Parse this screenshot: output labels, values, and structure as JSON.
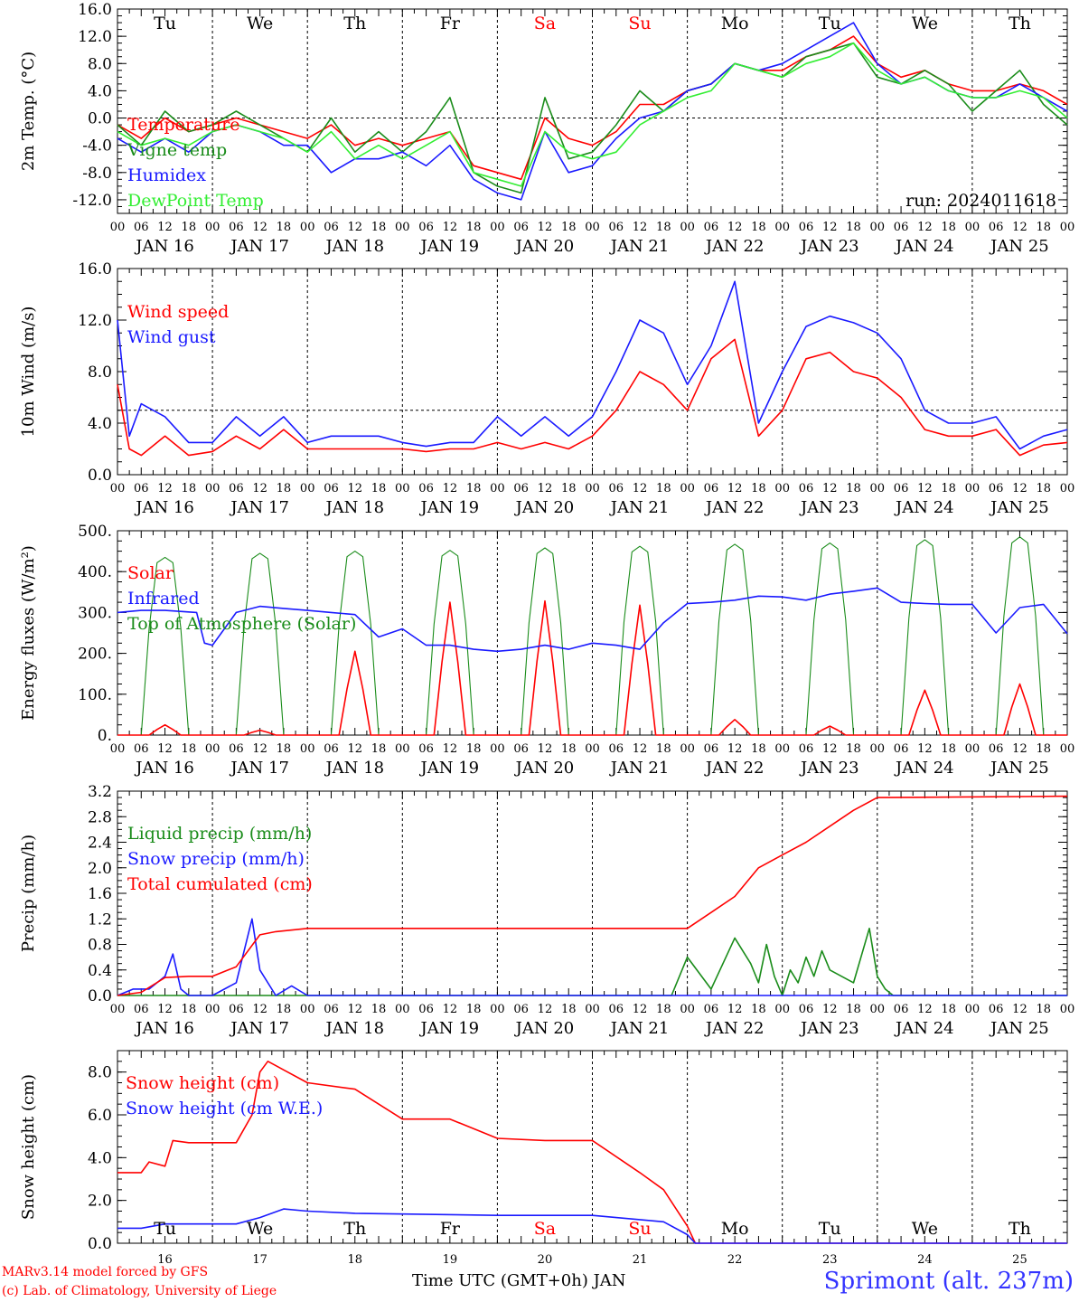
{
  "footer": {
    "model": "MARv3.14 model forced by GFS",
    "lab": "(c) Lab. of Climatology, University of Liege",
    "time_label": "Time UTC (GMT+0h) JAN",
    "station": "Sprimont (alt. 237m)"
  },
  "colors": {
    "red": "#ff0000",
    "green": "#1a8c1a",
    "blue": "#1a1aff",
    "lightgreen": "#33ee33",
    "black": "#000000"
  },
  "chart_data": [
    {
      "type": "line",
      "ylabel": "2m Temp. (°C)",
      "ylim": [
        -14,
        16
      ],
      "yticks": [
        "16.0",
        "12.0",
        "8.0",
        "4.0",
        "0.0",
        "-4.0",
        "-8.0",
        "-12.0"
      ],
      "ytick_values": [
        16,
        12,
        8,
        4,
        0,
        -4,
        -8,
        -12
      ],
      "ref_line": 0,
      "day_names": [
        "Tu",
        "We",
        "Th",
        "Fr",
        "Sa",
        "Su",
        "Mo",
        "Tu",
        "We",
        "Th"
      ],
      "weekend_days": [
        4,
        5
      ],
      "date_labels": [
        "JAN 16",
        "JAN 17",
        "JAN 18",
        "JAN 19",
        "JAN 20",
        "JAN 21",
        "JAN 22",
        "JAN 23",
        "JAN 24",
        "JAN 25"
      ],
      "hour_ticks": [
        "00",
        "06",
        "12",
        "18"
      ],
      "run": "run: 2024011618",
      "x": [
        0,
        6,
        12,
        18,
        24,
        30,
        36,
        42,
        48,
        54,
        60,
        66,
        72,
        78,
        84,
        90,
        96,
        102,
        108,
        114,
        120,
        126,
        132,
        138,
        144,
        150,
        156,
        162,
        168,
        174,
        180,
        186,
        192,
        198,
        204,
        210,
        216,
        222,
        228,
        234,
        240
      ],
      "series": [
        {
          "name": "Temperature",
          "color": "red",
          "values": [
            -1,
            -3,
            0,
            -2,
            -1,
            0,
            -1,
            -2,
            -3,
            -1,
            -4,
            -3,
            -4,
            -3,
            -2,
            -7,
            -8,
            -9,
            0,
            -3,
            -4,
            -2,
            2,
            2,
            4,
            5,
            8,
            7,
            7,
            9,
            10,
            12,
            8,
            6,
            7,
            5,
            4,
            4,
            5,
            4,
            2
          ]
        },
        {
          "name": "Vigne temp",
          "color": "green",
          "values": [
            -1,
            -4,
            1,
            -2,
            -1,
            1,
            -1,
            -3,
            -5,
            0,
            -5,
            -2,
            -5,
            -2,
            3,
            -8,
            -10,
            -11,
            3,
            -6,
            -5,
            -1,
            4,
            1,
            4,
            5,
            8,
            7,
            6,
            9,
            10,
            11,
            6,
            5,
            7,
            5,
            1,
            4,
            7,
            2,
            -1
          ]
        },
        {
          "name": "Humidex",
          "color": "blue",
          "values": [
            -3,
            -5,
            -3,
            -5,
            -2,
            -1,
            -2,
            -4,
            -4,
            -8,
            -6,
            -6,
            -5,
            -7,
            -4,
            -9,
            -11,
            -12,
            -2,
            -8,
            -7,
            -3,
            0,
            1,
            4,
            5,
            8,
            7,
            8,
            10,
            12,
            14,
            8,
            5,
            6,
            4,
            3,
            3,
            5,
            3,
            1
          ]
        },
        {
          "name": "DewPoint Temp",
          "color": "lightgreen",
          "values": [
            -2,
            -4,
            -3,
            -4,
            -2,
            -1,
            -2,
            -3,
            -5,
            -2,
            -6,
            -4,
            -6,
            -4,
            -2,
            -8,
            -9,
            -10,
            -2,
            -5,
            -6,
            -5,
            -1,
            1,
            3,
            4,
            8,
            7,
            6,
            8,
            9,
            11,
            7,
            5,
            6,
            4,
            3,
            3,
            4,
            3,
            0
          ]
        }
      ]
    },
    {
      "type": "line",
      "ylabel": "10m Wind (m/s)",
      "ylim": [
        0,
        16
      ],
      "yticks": [
        "16.0",
        "12.0",
        "8.0",
        "4.0",
        "0.0"
      ],
      "ytick_values": [
        16,
        12,
        8,
        4,
        0
      ],
      "ref_line": 5,
      "date_labels": [
        "JAN 16",
        "JAN 17",
        "JAN 18",
        "JAN 19",
        "JAN 20",
        "JAN 21",
        "JAN 22",
        "JAN 23",
        "JAN 24",
        "JAN 25"
      ],
      "hour_ticks": [
        "00",
        "06",
        "12",
        "18"
      ],
      "x": [
        0,
        3,
        6,
        12,
        18,
        24,
        30,
        36,
        42,
        48,
        54,
        60,
        66,
        72,
        78,
        84,
        90,
        96,
        102,
        108,
        114,
        120,
        126,
        132,
        138,
        144,
        150,
        156,
        162,
        168,
        174,
        180,
        186,
        192,
        198,
        204,
        210,
        216,
        222,
        228,
        234,
        240
      ],
      "series": [
        {
          "name": "Wind speed",
          "color": "red",
          "values": [
            7,
            2,
            1.5,
            3,
            1.5,
            1.8,
            3,
            2,
            3.5,
            2,
            2,
            2,
            2,
            2,
            1.8,
            2,
            2,
            2.5,
            2,
            2.5,
            2,
            3,
            5,
            8,
            7,
            5,
            9,
            10.5,
            3,
            5,
            9,
            9.5,
            8,
            7.5,
            6,
            3.5,
            3,
            3,
            3.5,
            1.5,
            2.3,
            2.5
          ]
        },
        {
          "name": "Wind gust",
          "color": "blue",
          "values": [
            12,
            3,
            5.5,
            4.5,
            2.5,
            2.5,
            4.5,
            3,
            4.5,
            2.5,
            3,
            3,
            3,
            2.5,
            2.2,
            2.5,
            2.5,
            4.5,
            3,
            4.5,
            3,
            4.5,
            8,
            12,
            11,
            7,
            10,
            15,
            4,
            8,
            11.5,
            12.3,
            11.8,
            11,
            9,
            5,
            4,
            4,
            4.5,
            2,
            3,
            3.5
          ]
        }
      ]
    },
    {
      "type": "line",
      "ylabel": "Energy fluxes (W/m²)",
      "ylim": [
        0,
        500
      ],
      "yticks": [
        "500.",
        "400.",
        "300.",
        "200.",
        "100.",
        "0."
      ],
      "ytick_values": [
        500,
        400,
        300,
        200,
        100,
        0
      ],
      "date_labels": [
        "JAN 16",
        "JAN 17",
        "JAN 18",
        "JAN 19",
        "JAN 20",
        "JAN 21",
        "JAN 22",
        "JAN 23",
        "JAN 24",
        "JAN 25"
      ],
      "hour_ticks": [
        "00",
        "06",
        "12",
        "18"
      ],
      "toa_peaks": [
        435,
        445,
        450,
        452,
        458,
        462,
        467,
        470,
        478,
        485
      ],
      "solar_peaks": [
        25,
        12,
        205,
        325,
        328,
        318,
        38,
        22,
        110,
        125
      ],
      "infrared": {
        "x": [
          0,
          6,
          12,
          20,
          22,
          24,
          30,
          36,
          42,
          48,
          54,
          60,
          66,
          72,
          78,
          84,
          90,
          96,
          102,
          108,
          114,
          120,
          126,
          132,
          138,
          144,
          150,
          156,
          162,
          168,
          174,
          180,
          186,
          192,
          198,
          204,
          210,
          216,
          222,
          228,
          234,
          240
        ],
        "values": [
          300,
          305,
          305,
          300,
          225,
          220,
          300,
          315,
          310,
          305,
          300,
          295,
          240,
          260,
          220,
          220,
          210,
          205,
          210,
          220,
          210,
          225,
          220,
          210,
          275,
          322,
          325,
          330,
          340,
          338,
          330,
          345,
          352,
          360,
          325,
          322,
          320,
          320,
          250,
          312,
          320,
          248
        ]
      },
      "series": [
        {
          "name": "Solar",
          "color": "red"
        },
        {
          "name": "Infrared",
          "color": "blue"
        },
        {
          "name": "Top of Atmosphere (Solar)",
          "color": "green"
        }
      ]
    },
    {
      "type": "line",
      "ylabel": "Precip (mm/h)",
      "ylim": [
        0,
        3.2
      ],
      "yticks": [
        "3.2",
        "2.8",
        "2.4",
        "2.0",
        "1.6",
        "1.2",
        "0.8",
        "0.4",
        "0.0"
      ],
      "ytick_values": [
        3.2,
        2.8,
        2.4,
        2.0,
        1.6,
        1.2,
        0.8,
        0.4,
        0.0
      ],
      "date_labels": [
        "JAN 16",
        "JAN 17",
        "JAN 18",
        "JAN 19",
        "JAN 20",
        "JAN 21",
        "JAN 22",
        "JAN 23",
        "JAN 24",
        "JAN 25"
      ],
      "hour_ticks": [
        "00",
        "06",
        "12",
        "18"
      ],
      "series": [
        {
          "name": "Liquid precip (mm/h)",
          "color": "green",
          "x": [
            0,
            140,
            144,
            150,
            156,
            160,
            162,
            164,
            166,
            168,
            170,
            172,
            174,
            176,
            178,
            180,
            186,
            190,
            192,
            194,
            196,
            240
          ],
          "values": [
            0,
            0,
            0.6,
            0.1,
            0.9,
            0.5,
            0.2,
            0.8,
            0.3,
            0,
            0.4,
            0.2,
            0.6,
            0.3,
            0.7,
            0.4,
            0.2,
            1.05,
            0.3,
            0.1,
            0,
            0
          ]
        },
        {
          "name": "Snow precip (mm/h)",
          "color": "blue",
          "x": [
            0,
            4,
            8,
            12,
            14,
            16,
            18,
            24,
            30,
            34,
            36,
            40,
            44,
            48,
            56,
            240
          ],
          "values": [
            0,
            0.1,
            0.1,
            0.3,
            0.65,
            0.1,
            0,
            0,
            0.2,
            1.2,
            0.4,
            0,
            0.15,
            0,
            0,
            0
          ]
        },
        {
          "name": "Total cumulated (cm)",
          "color": "red",
          "x": [
            0,
            6,
            12,
            18,
            24,
            30,
            36,
            40,
            48,
            60,
            96,
            144,
            150,
            156,
            162,
            168,
            174,
            180,
            186,
            192,
            240
          ],
          "values": [
            0,
            0.05,
            0.28,
            0.3,
            0.3,
            0.45,
            0.95,
            1.0,
            1.05,
            1.05,
            1.05,
            1.05,
            1.3,
            1.55,
            2.0,
            2.2,
            2.4,
            2.65,
            2.9,
            3.1,
            3.12
          ]
        }
      ]
    },
    {
      "type": "line",
      "ylabel": "Snow height (cm)",
      "ylim": [
        0,
        9
      ],
      "yticks": [
        "8.0",
        "6.0",
        "4.0",
        "2.0",
        "0.0"
      ],
      "ytick_values": [
        8,
        6,
        4,
        2,
        0
      ],
      "day_names": [
        "Tu",
        "We",
        "Th",
        "Fr",
        "Sa",
        "Su",
        "Mo",
        "Tu",
        "We",
        "Th"
      ],
      "weekend_days": [
        4,
        5
      ],
      "day_numbers": [
        "16",
        "17",
        "18",
        "19",
        "20",
        "21",
        "22",
        "23",
        "24",
        "25"
      ],
      "series": [
        {
          "name": "Snow height (cm)",
          "color": "red",
          "x": [
            0,
            6,
            8,
            12,
            14,
            18,
            24,
            30,
            34,
            36,
            38,
            40,
            42,
            48,
            60,
            72,
            84,
            96,
            108,
            120,
            132,
            138,
            144,
            146,
            240
          ],
          "values": [
            3.3,
            3.3,
            3.8,
            3.6,
            4.8,
            4.7,
            4.7,
            4.7,
            6.0,
            8.0,
            8.5,
            8.3,
            8.1,
            7.5,
            7.2,
            5.8,
            5.8,
            4.9,
            4.8,
            4.8,
            3.3,
            2.5,
            0.8,
            0,
            0
          ]
        },
        {
          "name": "Snow height (cm W.E.)",
          "color": "blue",
          "x": [
            0,
            6,
            12,
            24,
            30,
            36,
            42,
            48,
            60,
            96,
            120,
            138,
            144,
            146,
            240
          ],
          "values": [
            0.7,
            0.7,
            0.9,
            0.9,
            0.9,
            1.2,
            1.6,
            1.5,
            1.4,
            1.3,
            1.3,
            1.0,
            0.4,
            0,
            0
          ]
        }
      ]
    }
  ]
}
